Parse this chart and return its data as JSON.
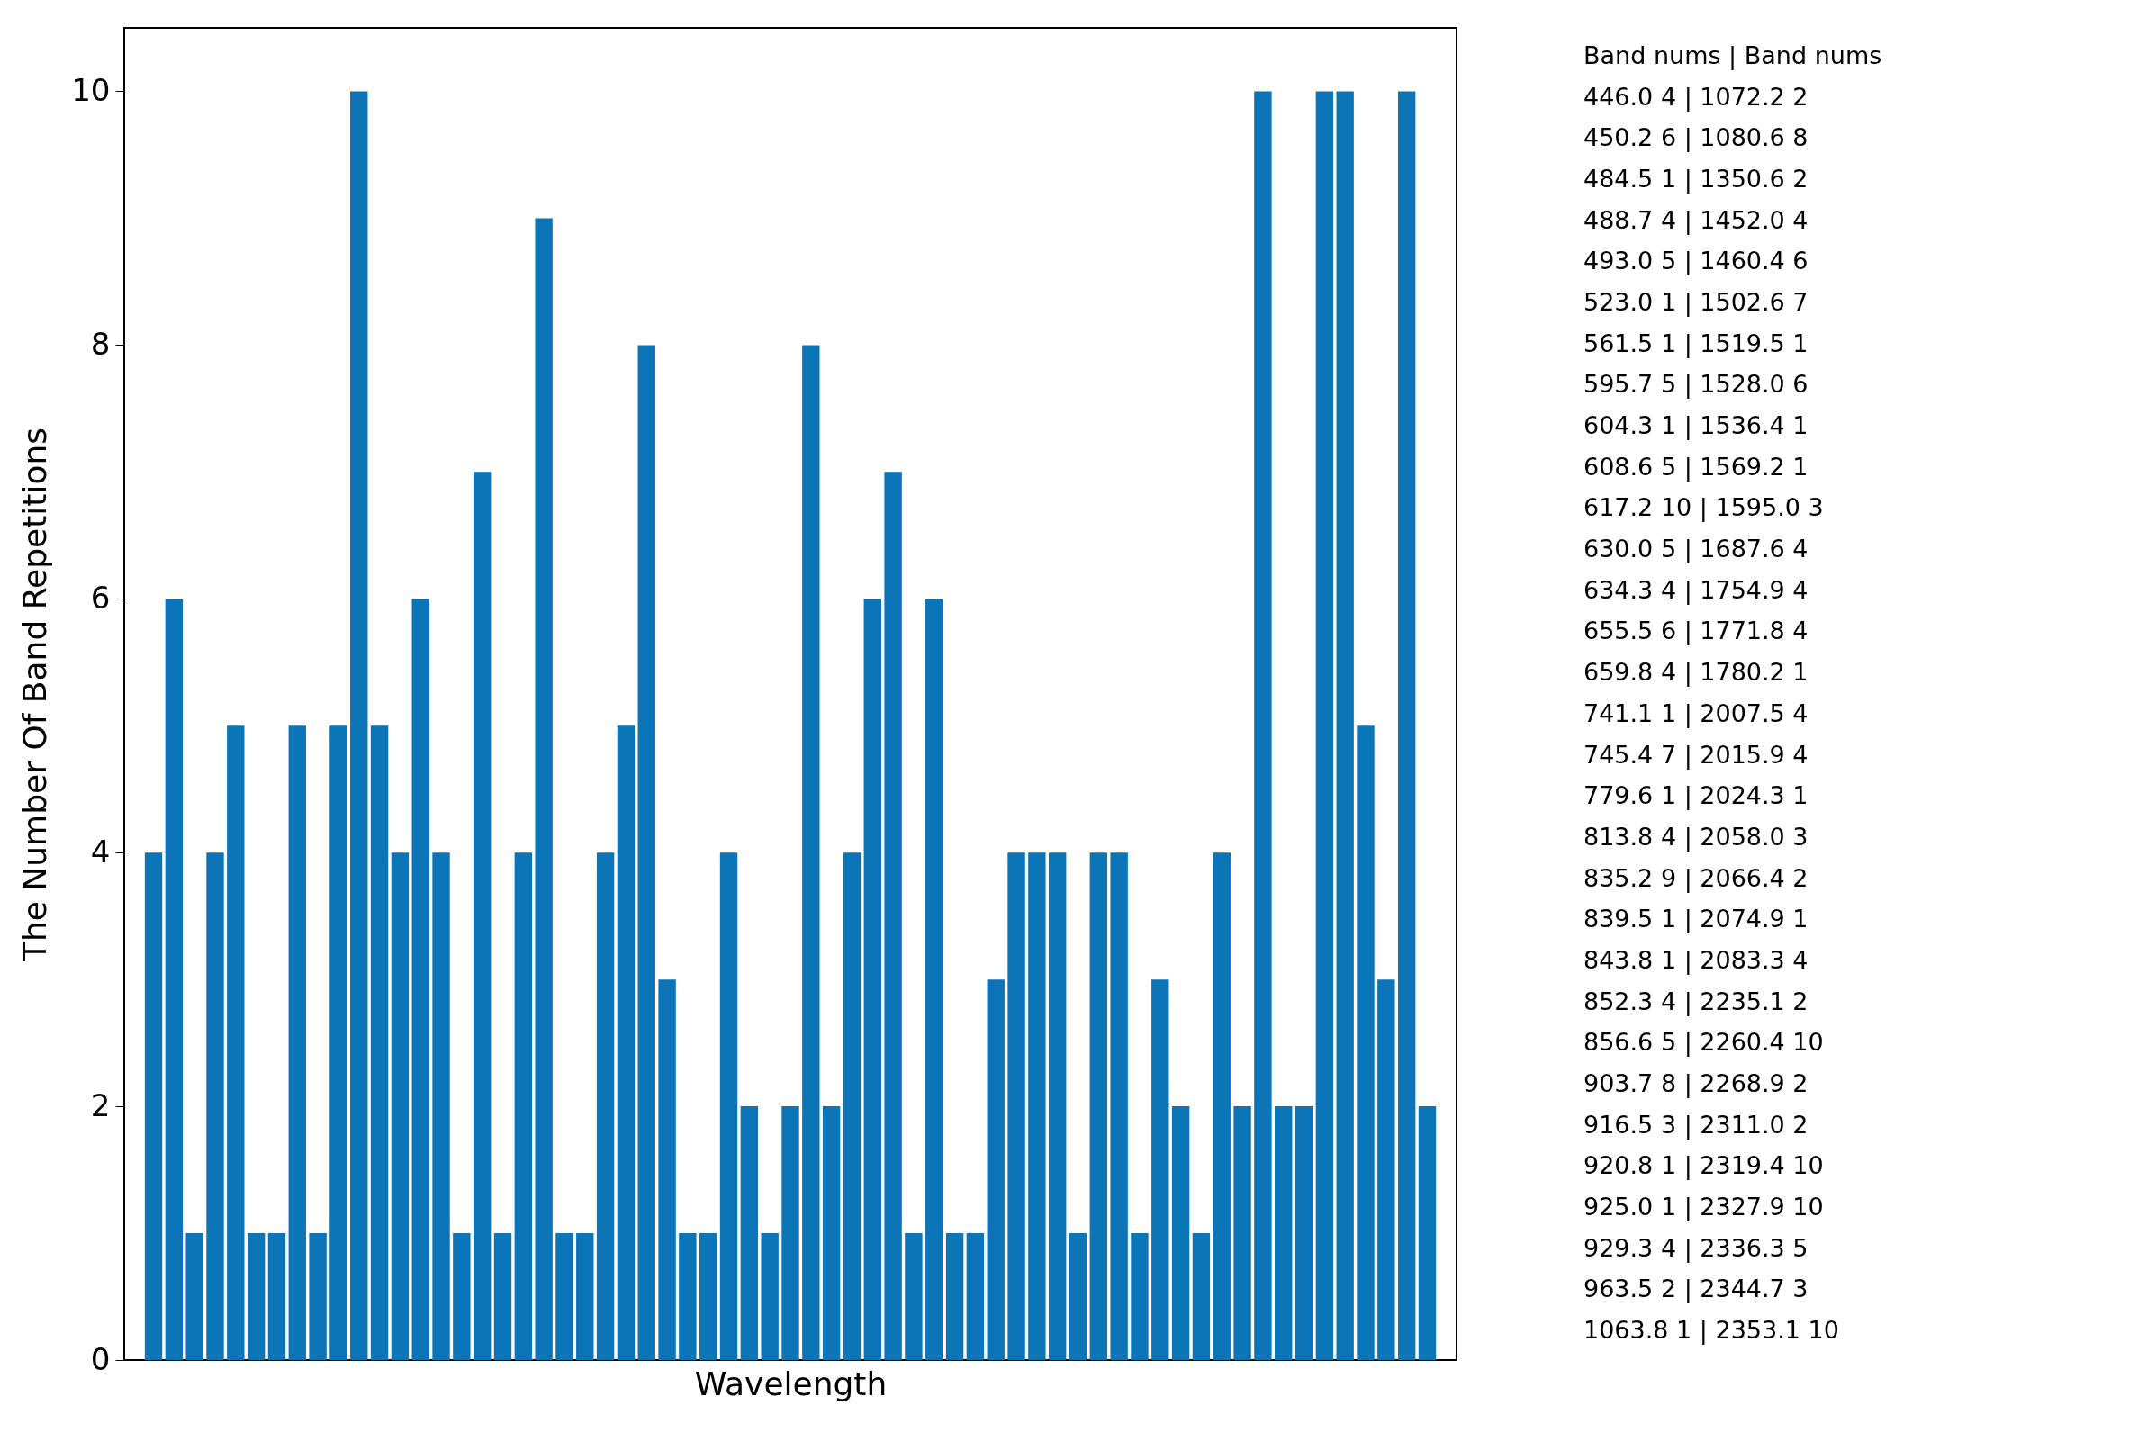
{
  "chart_data": {
    "type": "bar",
    "xlabel": "Wavelength",
    "ylabel": "The Number Of Band Repetitions",
    "categories": [
      null,
      null,
      null,
      null,
      null,
      null,
      null,
      null,
      null,
      null,
      null,
      null,
      null,
      null,
      null,
      null,
      null,
      null,
      null,
      null,
      null,
      null,
      null,
      null,
      null,
      null,
      null,
      null,
      null,
      null,
      null,
      null,
      null,
      null,
      null,
      null,
      null,
      null,
      null,
      null,
      null,
      null,
      null,
      null,
      null,
      null,
      null,
      null,
      null,
      null,
      null,
      null,
      null,
      null,
      null,
      null,
      null,
      null,
      null,
      null,
      null,
      null,
      null
    ],
    "values": [
      4,
      6,
      1,
      4,
      5,
      1,
      1,
      5,
      1,
      5,
      10,
      5,
      4,
      6,
      4,
      1,
      7,
      1,
      4,
      9,
      1,
      1,
      4,
      5,
      8,
      3,
      1,
      1,
      4,
      2,
      1,
      2,
      8,
      2,
      4,
      6,
      7,
      1,
      6,
      1,
      1,
      3,
      4,
      4,
      4,
      1,
      4,
      4,
      1,
      3,
      2,
      1,
      4,
      2,
      10,
      2,
      2,
      10,
      10,
      5,
      3,
      10,
      2
    ],
    "color": "#0b75b8",
    "ylim": [
      0,
      10.5
    ],
    "yticks": [
      0,
      2,
      4,
      6,
      8,
      10
    ],
    "grid": false,
    "tick_labels": "y",
    "annotations": [
      "Band  nums | Band   nums",
      "446.0   4   | 1072.2  2",
      "450.2   6   | 1080.6  8",
      "484.5   1   | 1350.6  2",
      "488.7   4   | 1452.0  4",
      "493.0   5   | 1460.4  6",
      "523.0   1   | 1502.6  7",
      "561.5   1   | 1519.5  1",
      "595.7   5   | 1528.0  6",
      "604.3   1   | 1536.4  1",
      "608.6   5   | 1569.2  1",
      "617.2   10   | 1595.0  3",
      "630.0   5   | 1687.6  4",
      "634.3   4   | 1754.9  4",
      "655.5   6   | 1771.8  4",
      "659.8   4   | 1780.2  1",
      "741.1   1   | 2007.5  4",
      "745.4   7   | 2015.9  4",
      "779.6   1   | 2024.3  1",
      "813.8   4   | 2058.0  3",
      "835.2   9   | 2066.4  2",
      "839.5   1   | 2074.9  1",
      "843.8   1   | 2083.3  4",
      "852.3   4   | 2235.1  2",
      "856.6   5   | 2260.4  10",
      "903.7   8   | 2268.9  2",
      "916.5   3   | 2311.0  2",
      "920.8   1   | 2319.4  10",
      "925.0   1   | 2327.9  10",
      "929.3   4   | 2336.3  5",
      "963.5   2   | 2344.7  3",
      "1063.8  1   | 2353.1  10"
    ]
  }
}
